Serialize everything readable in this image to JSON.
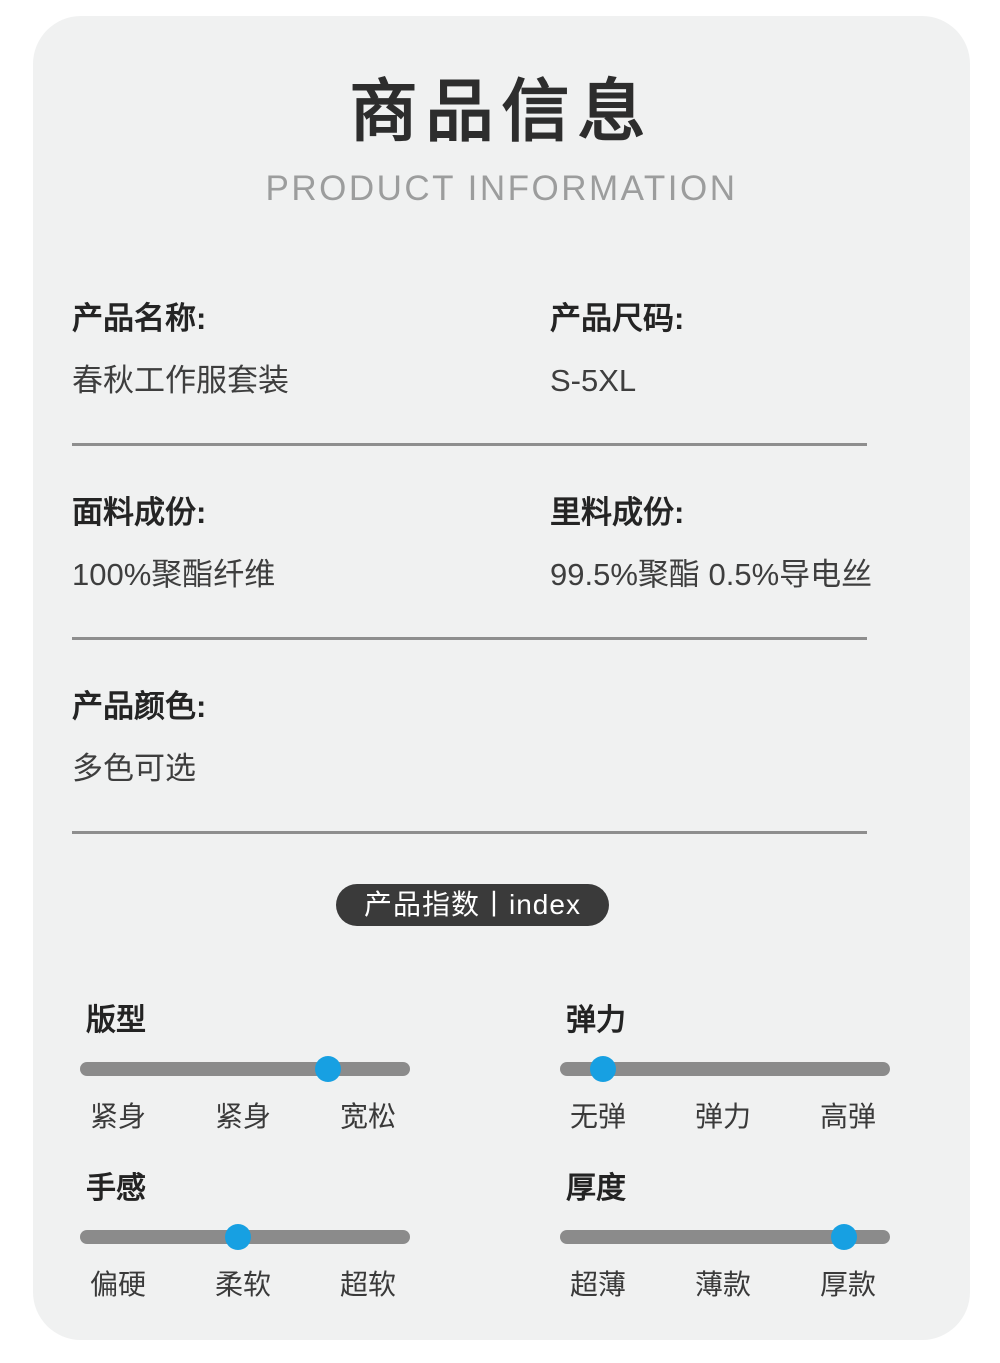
{
  "header": {
    "title": "商品信息",
    "subtitle": "PRODUCT INFORMATION"
  },
  "specs": [
    {
      "label": "产品名称:",
      "value": "春秋工作服套装"
    },
    {
      "label": "产品尺码:",
      "value": "S-5XL"
    },
    {
      "label": "面料成份:",
      "value": "100%聚酯纤维"
    },
    {
      "label": "里料成份:",
      "value": "99.5%聚酯 0.5%导电丝"
    },
    {
      "label": "产品颜色:",
      "value": "多色可选"
    }
  ],
  "index_badge": {
    "label": "产品指数丨index"
  },
  "sliders": [
    {
      "name": "版型",
      "ticks": [
        "紧身",
        "紧身",
        "宽松"
      ],
      "position_pct": 75
    },
    {
      "name": "弹力",
      "ticks": [
        "无弹",
        "弹力",
        "高弹"
      ],
      "position_pct": 13
    },
    {
      "name": "手感",
      "ticks": [
        "偏硬",
        "柔软",
        "超软"
      ],
      "position_pct": 48
    },
    {
      "name": "厚度",
      "ticks": [
        "超薄",
        "薄款",
        "厚款"
      ],
      "position_pct": 86
    }
  ],
  "colors": {
    "accent_blue": "#17a0e2",
    "track_gray": "#8b8b8b",
    "card_bg": "#f0f1f1",
    "badge_bg": "#3a3a3a",
    "divider_gray": "#8e8e8e"
  }
}
